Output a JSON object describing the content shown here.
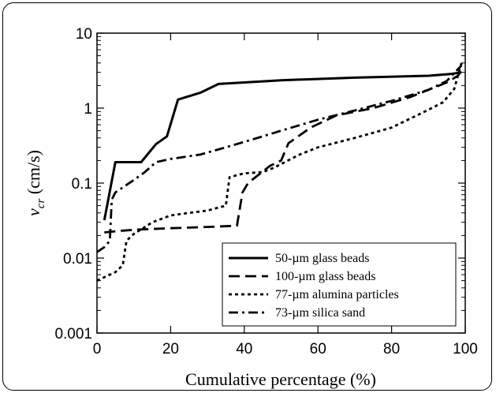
{
  "chart_data": {
    "type": "line",
    "title": "",
    "xlabel": "Cumulative percentage (%)",
    "ylabel_symbol": "v",
    "ylabel_subscript": "cr",
    "ylabel_unit": "(cm/s)",
    "xlim": [
      0,
      100
    ],
    "ylim": [
      0.001,
      10
    ],
    "yscale": "log",
    "grid": false,
    "legend_position": "lower-right",
    "x_ticks": [
      "0",
      "20",
      "40",
      "60",
      "80",
      "100"
    ],
    "y_ticks": [
      "0.001",
      "0.01",
      "0.1",
      "1",
      "10"
    ],
    "series": [
      {
        "name": "50-µm glass beads",
        "style": "solid",
        "points": [
          [
            2,
            0.032
          ],
          [
            5,
            0.19
          ],
          [
            12,
            0.19
          ],
          [
            16,
            0.33
          ],
          [
            19,
            0.42
          ],
          [
            22,
            1.3
          ],
          [
            28,
            1.6
          ],
          [
            33,
            2.1
          ],
          [
            50,
            2.35
          ],
          [
            70,
            2.55
          ],
          [
            90,
            2.7
          ],
          [
            96,
            2.85
          ],
          [
            99,
            3.0
          ]
        ]
      },
      {
        "name": "100-µm glass beads",
        "style": "dash",
        "points": [
          [
            2,
            0.022
          ],
          [
            6,
            0.023
          ],
          [
            11,
            0.024
          ],
          [
            20,
            0.025
          ],
          [
            30,
            0.026
          ],
          [
            38,
            0.027
          ],
          [
            39.5,
            0.075
          ],
          [
            41,
            0.1
          ],
          [
            47,
            0.17
          ],
          [
            50,
            0.2
          ],
          [
            52,
            0.34
          ],
          [
            58,
            0.55
          ],
          [
            65,
            0.8
          ],
          [
            75,
            1.0
          ],
          [
            85,
            1.4
          ],
          [
            95,
            2.2
          ],
          [
            98,
            2.7
          ],
          [
            99,
            3.2
          ]
        ]
      },
      {
        "name": "77-µm alumina particles",
        "style": "dot",
        "points": [
          [
            0,
            0.005
          ],
          [
            5,
            0.0065
          ],
          [
            7,
            0.008
          ],
          [
            8,
            0.017
          ],
          [
            10,
            0.021
          ],
          [
            15,
            0.03
          ],
          [
            20,
            0.037
          ],
          [
            25,
            0.04
          ],
          [
            30,
            0.043
          ],
          [
            35,
            0.05
          ],
          [
            36,
            0.12
          ],
          [
            40,
            0.135
          ],
          [
            45,
            0.14
          ],
          [
            48,
            0.16
          ],
          [
            55,
            0.24
          ],
          [
            60,
            0.3
          ],
          [
            70,
            0.4
          ],
          [
            80,
            0.55
          ],
          [
            90,
            0.95
          ],
          [
            94,
            1.2
          ],
          [
            97,
            1.8
          ],
          [
            99,
            4.0
          ]
        ]
      },
      {
        "name": "73-µm silica sand",
        "style": "dashdot",
        "points": [
          [
            0,
            0.012
          ],
          [
            2,
            0.014
          ],
          [
            3.5,
            0.017
          ],
          [
            4,
            0.06
          ],
          [
            5,
            0.075
          ],
          [
            10,
            0.11
          ],
          [
            13,
            0.14
          ],
          [
            16,
            0.19
          ],
          [
            20,
            0.21
          ],
          [
            28,
            0.24
          ],
          [
            35,
            0.3
          ],
          [
            45,
            0.42
          ],
          [
            50,
            0.5
          ],
          [
            60,
            0.7
          ],
          [
            70,
            0.93
          ],
          [
            80,
            1.25
          ],
          [
            90,
            1.75
          ],
          [
            95,
            2.3
          ],
          [
            98,
            3.3
          ],
          [
            99,
            3.7
          ]
        ]
      }
    ]
  }
}
